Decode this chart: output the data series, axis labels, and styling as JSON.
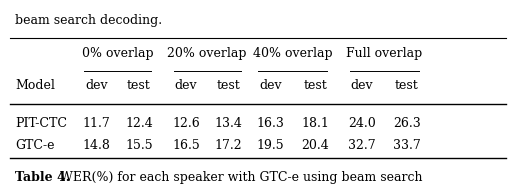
{
  "top_text": "beam search decoding.",
  "col_groups": [
    "0% overlap",
    "20% overlap",
    "40% overlap",
    "Full overlap"
  ],
  "sub_cols": [
    "dev",
    "test"
  ],
  "row_label_header": "Model",
  "rows": [
    {
      "model": "PIT-CTC",
      "values": [
        11.7,
        12.4,
        12.6,
        13.4,
        16.3,
        18.1,
        24.0,
        26.3
      ]
    },
    {
      "model": "GTC-e",
      "values": [
        14.8,
        15.5,
        16.5,
        17.2,
        19.5,
        20.4,
        32.7,
        33.7
      ]
    }
  ],
  "bg_color": "#ffffff",
  "text_color": "#000000",
  "fontsize": 9,
  "bold_caption": "Table 4.",
  "caption_rest": "  WER(%) for each speaker with GTC-e using beam search"
}
